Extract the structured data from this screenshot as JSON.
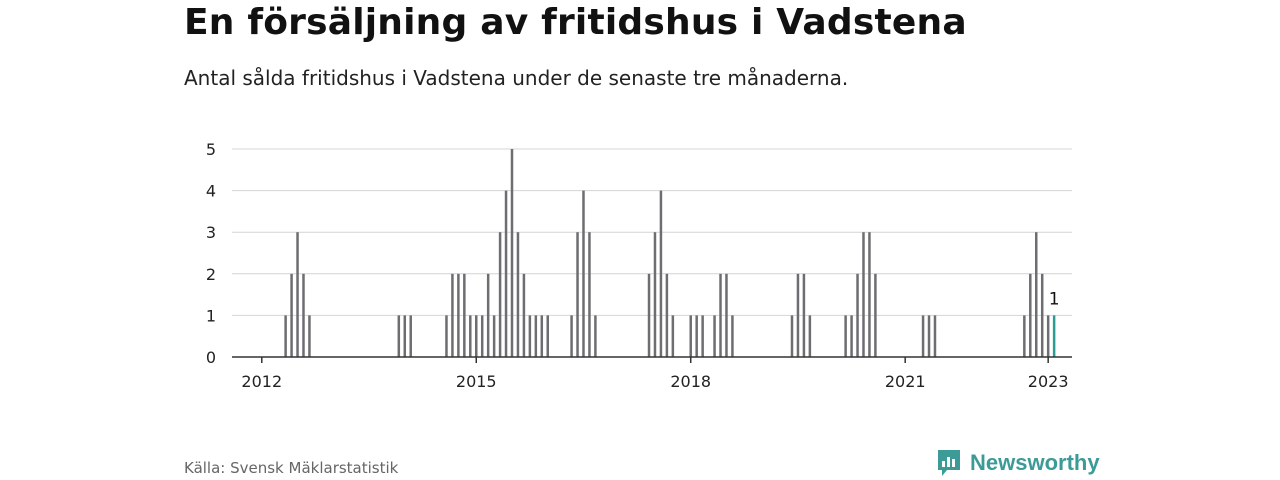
{
  "title": "En försäljning av fritidshus i Vadstena",
  "subtitle": "Antal sålda fritidshus i Vadstena under de senaste tre månaderna.",
  "source": "Källa: Svensk Mäklarstatistik",
  "brand": {
    "name": "Newsworthy",
    "icon": "newsworthy-logo-icon"
  },
  "colors": {
    "bar": "#6e6e72",
    "highlight": "#2a9d95",
    "grid": "#d4d4d4",
    "axis": "#333333",
    "brand": "#3d9b97"
  },
  "chart_data": {
    "type": "bar",
    "title": "",
    "xlabel": "",
    "ylabel": "",
    "ylim": [
      0,
      5
    ],
    "yticks": [
      "0",
      "1",
      "2",
      "3",
      "4",
      "5"
    ],
    "xlim": [
      "2011-08",
      "2023-05"
    ],
    "xticks": [
      {
        "x": "2012-01",
        "label": "2012"
      },
      {
        "x": "2015-01",
        "label": "2015"
      },
      {
        "x": "2018-01",
        "label": "2018"
      },
      {
        "x": "2021-01",
        "label": "2021"
      },
      {
        "x": "2023-01",
        "label": "2023"
      }
    ],
    "grid": true,
    "series": [
      {
        "x": [
          "2012-05",
          "2012-06",
          "2012-07",
          "2012-08",
          "2012-09",
          "2013-12",
          "2014-01",
          "2014-02",
          "2014-08",
          "2014-09",
          "2014-10",
          "2014-11",
          "2014-12",
          "2015-01",
          "2015-01",
          "2015-02",
          "2015-03",
          "2015-04",
          "2015-05",
          "2015-06",
          "2015-07",
          "2015-08",
          "2015-09",
          "2015-10",
          "2015-11",
          "2015-12",
          "2016-01",
          "2016-05",
          "2016-06",
          "2016-07",
          "2016-08",
          "2016-09",
          "2017-06",
          "2017-07",
          "2017-08",
          "2017-09",
          "2017-10",
          "2018-01",
          "2018-02",
          "2018-03",
          "2018-05",
          "2018-06",
          "2018-07",
          "2018-08",
          "2019-06",
          "2019-07",
          "2019-08",
          "2019-09",
          "2020-03",
          "2020-04",
          "2020-05",
          "2020-06",
          "2020-07",
          "2020-08",
          "2021-04",
          "2021-05",
          "2021-06",
          "2022-09",
          "2022-10",
          "2022-11",
          "2022-12",
          "2023-01",
          "2023-02"
        ],
        "values": [
          1,
          2,
          3,
          2,
          1,
          1,
          1,
          1,
          1,
          2,
          2,
          2,
          1,
          1,
          1,
          1,
          2,
          1,
          3,
          4,
          5,
          3,
          2,
          1,
          1,
          1,
          1,
          1,
          3,
          4,
          3,
          1,
          2,
          3,
          4,
          2,
          1,
          1,
          1,
          1,
          1,
          2,
          2,
          1,
          1,
          2,
          2,
          1,
          1,
          1,
          2,
          3,
          3,
          2,
          1,
          1,
          1,
          1,
          2,
          3,
          2,
          1,
          1
        ],
        "highlight_last": true
      }
    ],
    "annotations": [
      {
        "x": "2023-02",
        "y": 1,
        "text": "1"
      }
    ]
  }
}
